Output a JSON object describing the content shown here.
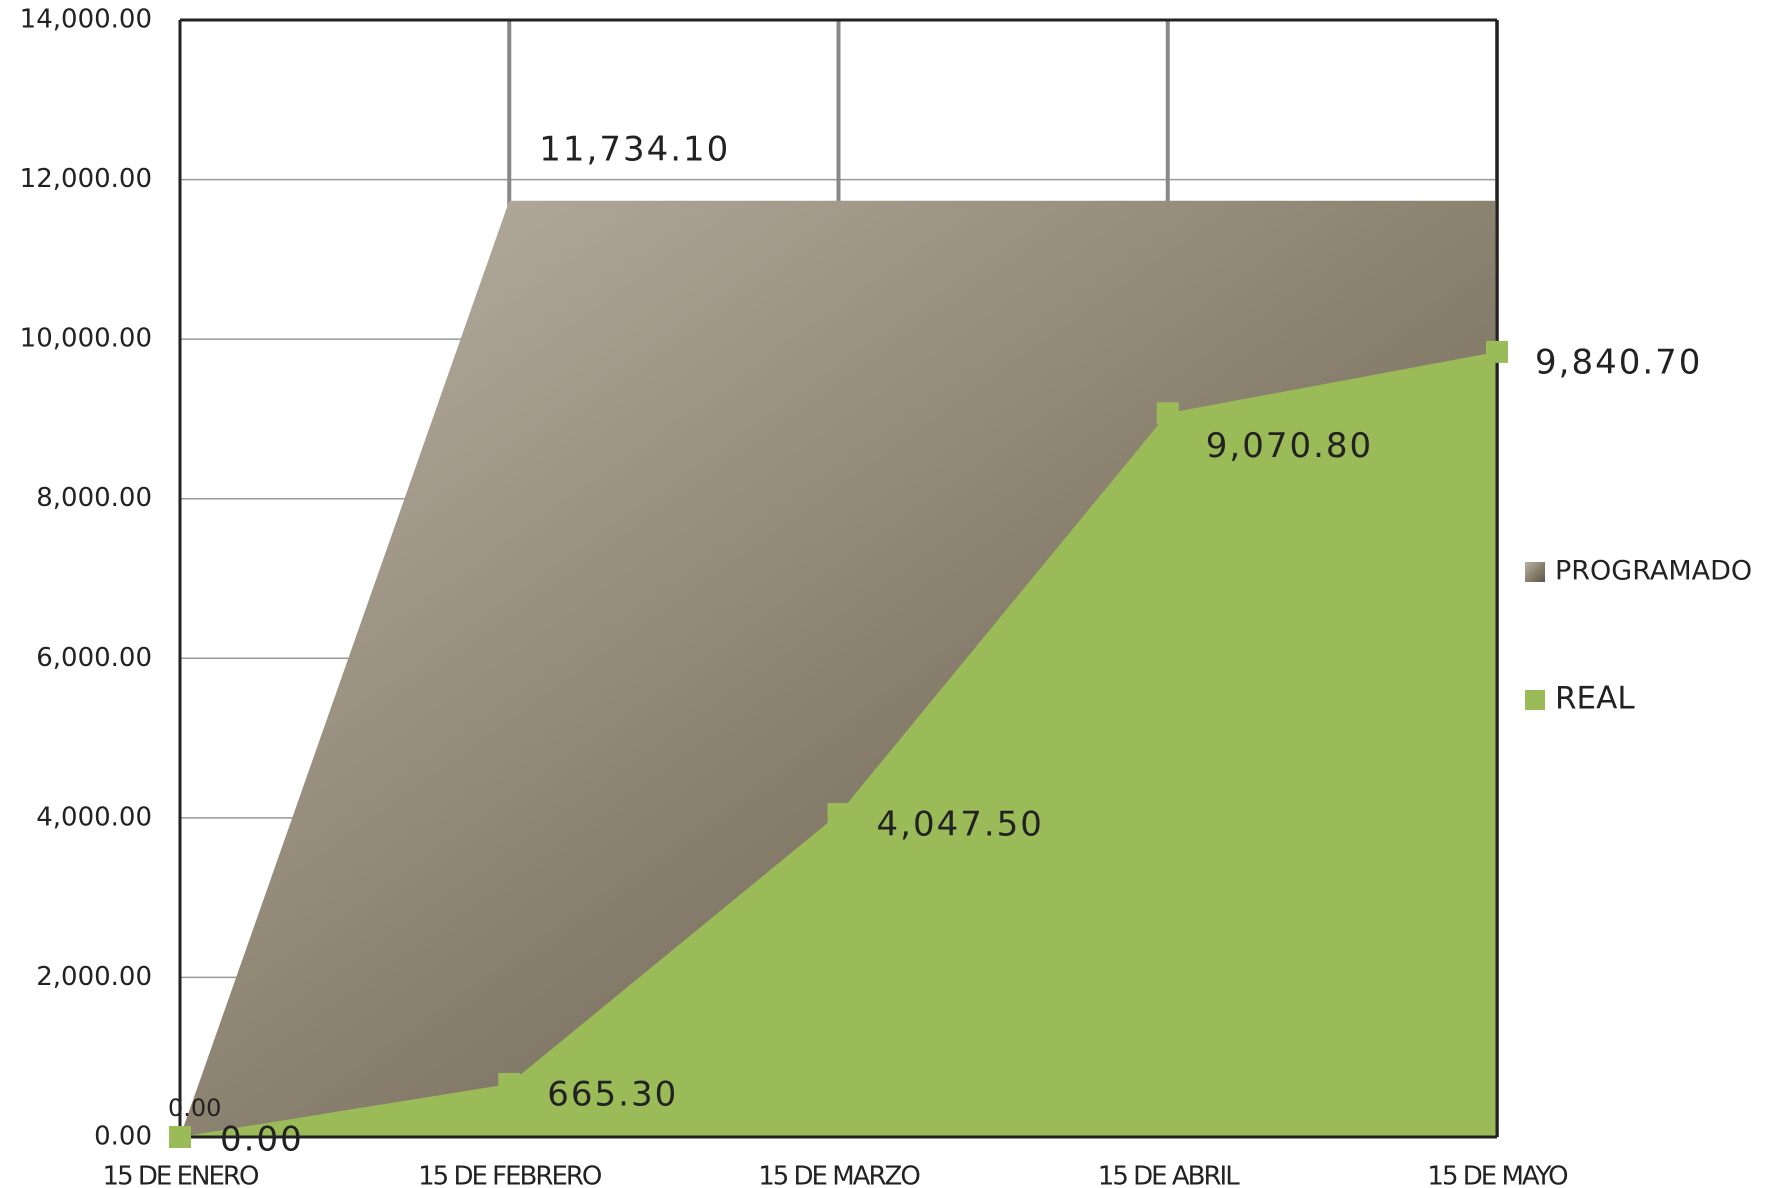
{
  "chart_data": {
    "type": "area",
    "categories": [
      "15 DE ENERO",
      "15 DE FEBRERO",
      "15 DE MARZO",
      "15 DE ABRIL",
      "15 DE MAYO"
    ],
    "series": [
      {
        "name": "PROGRAMADO",
        "color": "#8c8270",
        "values": [
          0,
          11734.1,
          11734.1,
          11734.1,
          11734.1
        ],
        "value_labels": [
          "0.00",
          "11,734.10",
          null,
          null,
          null
        ]
      },
      {
        "name": "REAL",
        "color": "#9bbb59",
        "values": [
          0,
          665.3,
          4047.5,
          9070.8,
          9840.7
        ],
        "value_labels": [
          "0.00",
          "665.30",
          "4,047.50",
          "9,070.80",
          "9,840.70"
        ]
      }
    ],
    "ylim": [
      0,
      14000
    ],
    "yticks": [
      {
        "value": 0,
        "label": "0.00"
      },
      {
        "value": 2000,
        "label": "2,000.00"
      },
      {
        "value": 4000,
        "label": "4,000.00"
      },
      {
        "value": 6000,
        "label": "6,000.00"
      },
      {
        "value": 8000,
        "label": "8,000.00"
      },
      {
        "value": 10000,
        "label": "10,000.00"
      },
      {
        "value": 12000,
        "label": "12,000.00"
      },
      {
        "value": 14000,
        "label": "14,000.00"
      }
    ],
    "grid": true,
    "legend": "right"
  }
}
